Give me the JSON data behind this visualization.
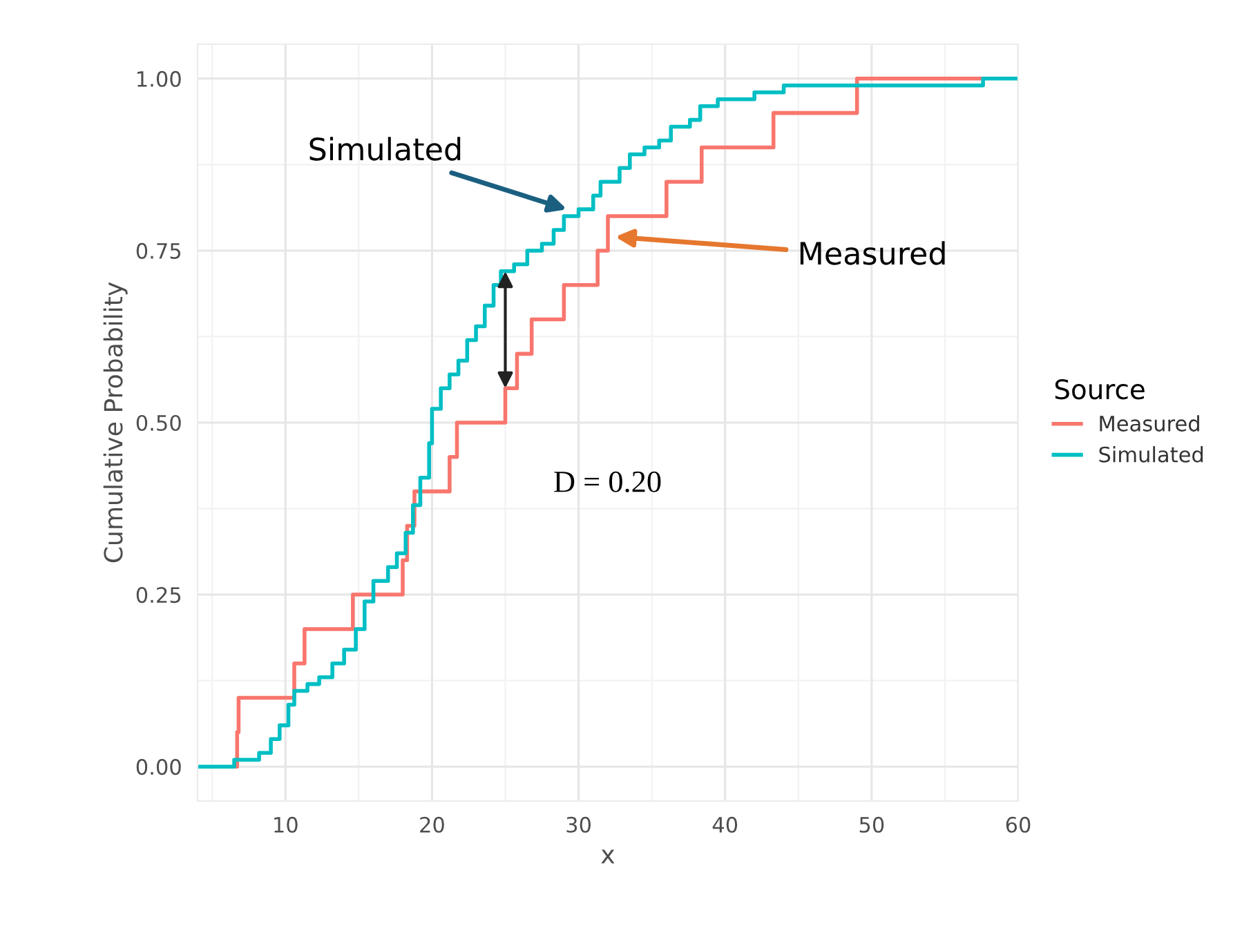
{
  "chart_data": {
    "type": "step",
    "xlabel": "x",
    "ylabel": "Cumulative Probability",
    "legend_title": "Source",
    "xlim": [
      4,
      60
    ],
    "xticks": [
      10,
      20,
      30,
      40,
      50,
      60
    ],
    "ylim": [
      -0.05,
      1.05
    ],
    "yticks": [
      {
        "value": 0,
        "label": "0.00"
      },
      {
        "value": 0.25,
        "label": "0.25"
      },
      {
        "value": 0.5,
        "label": "0.50"
      },
      {
        "value": 0.75,
        "label": "0.75"
      },
      {
        "value": 1,
        "label": "1.00"
      }
    ],
    "grid": true,
    "legend": "right",
    "series": [
      {
        "name": "Measured",
        "color": "#f8766d",
        "x": [
          6.6,
          6.7,
          6.8,
          10.6,
          11.3,
          14.6,
          18.0,
          18.3,
          18.8,
          21.2,
          21.7,
          25.0,
          25.8,
          26.8,
          29.0,
          31.3,
          32.0,
          36.0,
          38.4,
          43.3,
          49.0,
          57.6
        ],
        "values": [
          0,
          0.05,
          0.1,
          0.15,
          0.2,
          0.25,
          0.3,
          0.35,
          0.4,
          0.45,
          0.5,
          0.55,
          0.6,
          0.65,
          0.7,
          0.75,
          0.8,
          0.85,
          0.9,
          0.95,
          1.0,
          1.0
        ]
      },
      {
        "name": "Simulated",
        "color": "#00bfc4",
        "x": [
          4,
          6.5,
          8.2,
          9.0,
          9.6,
          10.2,
          10.6,
          11.5,
          12.3,
          13.2,
          14.0,
          14.8,
          15.4,
          16.0,
          17.0,
          17.6,
          18.2,
          18.7,
          19.2,
          19.8,
          20.0,
          20.6,
          21.2,
          21.8,
          22.4,
          23.0,
          23.6,
          24.2,
          24.7,
          25.6,
          26.5,
          27.5,
          28.3,
          29.0,
          30.0,
          31.0,
          31.5,
          32.8,
          33.5,
          34.5,
          35.5,
          36.3,
          37.6,
          38.3,
          39.5,
          42.0,
          44.0,
          57.6,
          60.0
        ],
        "values": [
          0,
          0.01,
          0.02,
          0.04,
          0.06,
          0.09,
          0.11,
          0.12,
          0.13,
          0.15,
          0.17,
          0.2,
          0.24,
          0.27,
          0.29,
          0.31,
          0.34,
          0.38,
          0.42,
          0.47,
          0.52,
          0.55,
          0.57,
          0.59,
          0.62,
          0.64,
          0.67,
          0.7,
          0.72,
          0.73,
          0.75,
          0.76,
          0.78,
          0.8,
          0.81,
          0.83,
          0.85,
          0.87,
          0.89,
          0.9,
          0.91,
          0.93,
          0.94,
          0.96,
          0.97,
          0.98,
          0.99,
          1.0,
          1.0
        ]
      }
    ],
    "annotations": [
      {
        "text": "Simulated",
        "x": 29.2,
        "y": 0.81
      },
      {
        "text": "Measured",
        "x": 32.5,
        "y": 0.77
      },
      {
        "text": "D = 0.20",
        "x": 25,
        "y": 0.5
      }
    ]
  }
}
